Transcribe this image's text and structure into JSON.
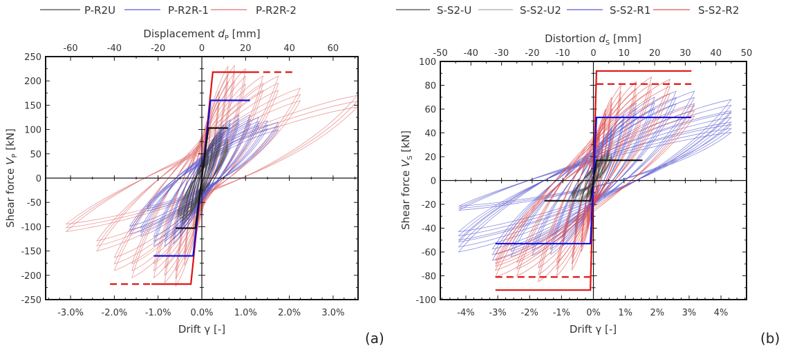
{
  "chart_data": [
    {
      "type": "line",
      "panel_label": "(a)",
      "top_axis": {
        "prefix": "Displacement ",
        "symbol": "d",
        "sub": "P",
        "suffix": " [mm]"
      },
      "bottom_axis_label": "Drift γ [-]",
      "y_axis": {
        "prefix": "Shear force ",
        "symbol": "V",
        "sub": "P",
        "suffix": " [kN]"
      },
      "xlim_mm": [
        -71.4,
        71.4
      ],
      "drift_lim_percent": [
        -3.57,
        3.57
      ],
      "ylim": [
        -250,
        250
      ],
      "top_ticks": [
        -60,
        -40,
        -20,
        0,
        20,
        40,
        60
      ],
      "top_tick_labels": [
        "-60",
        "-40",
        "-20",
        "0",
        "20",
        "40",
        "60"
      ],
      "bottom_ticks": [
        -3,
        -2,
        -1,
        0,
        1,
        2,
        3
      ],
      "bottom_tick_labels": [
        "-3.0%",
        "-2.0%",
        "-1.0%",
        "0.0%",
        "1.0%",
        "2.0%",
        "3.0%"
      ],
      "y_ticks": [
        -250,
        -200,
        -150,
        -100,
        -50,
        0,
        50,
        100,
        150,
        200,
        250
      ],
      "y_tick_labels": [
        "-250",
        "-200",
        "-150",
        "-100",
        "-50",
        "0",
        "50",
        "100",
        "150",
        "200",
        "250"
      ],
      "legend_position": "top",
      "series": [
        {
          "name": "P-R2R-2",
          "color": "#e07070",
          "peaks_pos": [
            [
              4,
              120
            ],
            [
              8,
              180
            ],
            [
              12,
              230
            ],
            [
              15,
              232
            ],
            [
              20,
              225
            ],
            [
              28,
              210
            ],
            [
              35,
              210
            ],
            [
              45,
              185
            ],
            [
              71,
              170
            ]
          ],
          "peaks_neg": [
            [
              -4,
              -120
            ],
            [
              -8,
              -180
            ],
            [
              -12,
              -222
            ],
            [
              -17,
              -215
            ],
            [
              -22,
              -205
            ],
            [
              -32,
              -205
            ],
            [
              -40,
              -190
            ],
            [
              -48,
              -150
            ],
            [
              -62,
              -110
            ]
          ]
        },
        {
          "name": "P-R2R-1",
          "color": "#5a5ad0",
          "peaks_pos": [
            [
              3,
              40
            ],
            [
              5,
              60
            ],
            [
              8,
              95
            ],
            [
              10,
              110
            ],
            [
              13,
              120
            ],
            [
              17,
              130
            ],
            [
              22,
              130
            ],
            [
              26,
              125
            ],
            [
              30,
              118
            ],
            [
              35,
              115
            ]
          ],
          "peaks_neg": [
            [
              -3,
              -40
            ],
            [
              -5,
              -60
            ],
            [
              -8,
              -100
            ],
            [
              -10,
              -120
            ],
            [
              -13,
              -135
            ],
            [
              -17,
              -140
            ],
            [
              -22,
              -140
            ],
            [
              -28,
              -120
            ],
            [
              -33,
              -115
            ],
            [
              -25,
              -68
            ]
          ]
        },
        {
          "name": "P-R2U",
          "color": "#444444",
          "peaks_pos": [
            [
              2,
              35
            ],
            [
              3,
              50
            ],
            [
              5,
              70
            ],
            [
              7,
              90
            ],
            [
              9,
              100
            ],
            [
              12,
              80
            ],
            [
              12,
              65
            ]
          ],
          "peaks_neg": [
            [
              -2,
              -35
            ],
            [
              -3,
              -50
            ],
            [
              -5,
              -70
            ],
            [
              -7,
              -85
            ],
            [
              -9,
              -95
            ],
            [
              -10,
              -90
            ],
            [
              -11,
              -80
            ]
          ]
        }
      ],
      "idealized": [
        {
          "color": "#e01010",
          "dashed": false,
          "points": [
            [
              -23,
              -218
            ],
            [
              -5,
              -218
            ],
            [
              0,
              0
            ],
            [
              5,
              218
            ],
            [
              23,
              218
            ]
          ]
        },
        {
          "color": "#e01010",
          "dashed": true,
          "points": [
            [
              -42,
              -218
            ],
            [
              -23,
              -218
            ]
          ]
        },
        {
          "color": "#e01010",
          "dashed": true,
          "points": [
            [
              23,
              218
            ],
            [
              42,
              218
            ]
          ]
        },
        {
          "color": "#1010e0",
          "dashed": false,
          "points": [
            [
              -22,
              -160
            ],
            [
              -4,
              -160
            ],
            [
              0,
              0
            ],
            [
              4,
              160
            ],
            [
              22,
              160
            ]
          ]
        },
        {
          "color": "#111111",
          "dashed": false,
          "points": [
            [
              -12,
              -103
            ],
            [
              -3,
              -103
            ],
            [
              0,
              0
            ],
            [
              3,
              103
            ],
            [
              12,
              103
            ]
          ]
        }
      ]
    },
    {
      "type": "line",
      "panel_label": "(b)",
      "top_axis": {
        "prefix": "Distortion ",
        "symbol": "d",
        "sub": "S",
        "suffix": " [mm]"
      },
      "bottom_axis_label": "Drift γ [-]",
      "y_axis": {
        "prefix": "Shear force ",
        "symbol": "V",
        "sub": "S",
        "suffix": " [kN]"
      },
      "xlim_mm": [
        -50,
        50
      ],
      "drift_lim_percent": [
        -4.8,
        4.8
      ],
      "ylim": [
        -100,
        100
      ],
      "top_ticks": [
        -50,
        -40,
        -30,
        -20,
        -10,
        0,
        10,
        20,
        30,
        40,
        50
      ],
      "top_tick_labels": [
        "-50",
        "-40",
        "-30",
        "-20",
        "-10",
        "0",
        "10",
        "20",
        "30",
        "40",
        "50"
      ],
      "bottom_ticks": [
        -4,
        -3,
        -2,
        -1,
        0,
        1,
        2,
        3,
        4
      ],
      "bottom_tick_labels": [
        "-4%",
        "-3%",
        "-2%",
        "-1%",
        "0%",
        "1%",
        "2%",
        "3%",
        "4%"
      ],
      "y_ticks": [
        -100,
        -80,
        -60,
        -40,
        -20,
        0,
        20,
        40,
        60,
        80,
        100
      ],
      "y_tick_labels": [
        "-100",
        "-80",
        "-60",
        "-40",
        "-20",
        "0",
        "20",
        "40",
        "60",
        "80",
        "100"
      ],
      "legend_position": "top",
      "series": [
        {
          "name": "S-S2-R1",
          "color": "#5a5ad0",
          "peaks_pos": [
            [
              3,
              30
            ],
            [
              6,
              45
            ],
            [
              10,
              55
            ],
            [
              14,
              65
            ],
            [
              20,
              70
            ],
            [
              27,
              75
            ],
            [
              33,
              75
            ],
            [
              45,
              68
            ],
            [
              45,
              57
            ],
            [
              45,
              47
            ]
          ],
          "peaks_neg": [
            [
              -3,
              -30
            ],
            [
              -6,
              -45
            ],
            [
              -10,
              -55
            ],
            [
              -14,
              -62
            ],
            [
              -20,
              -63
            ],
            [
              -27,
              -64
            ],
            [
              -33,
              -67
            ],
            [
              -44,
              -60
            ],
            [
              -44,
              -50
            ],
            [
              -44,
              -25
            ]
          ]
        },
        {
          "name": "S-S2-R2",
          "color": "#e05050",
          "peaks_pos": [
            [
              2,
              40
            ],
            [
              4,
              60
            ],
            [
              6,
              70
            ],
            [
              9,
              80
            ],
            [
              14,
              83
            ],
            [
              19,
              87
            ],
            [
              25,
              85
            ],
            [
              33,
              63
            ]
          ],
          "peaks_neg": [
            [
              -2,
              -40
            ],
            [
              -4,
              -60
            ],
            [
              -7,
              -75
            ],
            [
              -12,
              -80
            ],
            [
              -18,
              -85
            ],
            [
              -25,
              -80
            ],
            [
              -32,
              -81
            ],
            [
              -32,
              -72
            ]
          ]
        },
        {
          "name": "S-S2-U2",
          "color": "#aaaaaa",
          "peaks_pos": [
            [
              2,
              12
            ],
            [
              4,
              18
            ],
            [
              6,
              20
            ]
          ],
          "peaks_neg": [
            [
              -2,
              -15
            ],
            [
              -5,
              -20
            ],
            [
              -8,
              -22
            ]
          ]
        },
        {
          "name": "S-S2-U",
          "color": "#444444",
          "peaks_pos": [
            [
              1,
              10
            ],
            [
              2,
              15
            ],
            [
              3,
              20
            ],
            [
              5,
              25
            ],
            [
              6,
              22
            ]
          ],
          "peaks_neg": [
            [
              -1,
              -10
            ],
            [
              -2,
              -15
            ],
            [
              -4,
              -18
            ],
            [
              -7,
              -15
            ],
            [
              -7,
              -12
            ]
          ]
        }
      ],
      "idealized": [
        {
          "color": "#e01010",
          "dashed": false,
          "points": [
            [
              -32,
              -92
            ],
            [
              -1,
              -92
            ],
            [
              0,
              0
            ],
            [
              1,
              92
            ],
            [
              32,
              92
            ]
          ]
        },
        {
          "color": "#e01010",
          "dashed": true,
          "points": [
            [
              -32,
              -81
            ],
            [
              -1,
              -81
            ]
          ]
        },
        {
          "color": "#e01010",
          "dashed": true,
          "points": [
            [
              1,
              81
            ],
            [
              32,
              81
            ]
          ]
        },
        {
          "color": "#1010e0",
          "dashed": false,
          "points": [
            [
              -32,
              -53
            ],
            [
              -1,
              -53
            ],
            [
              0,
              0
            ],
            [
              1,
              53
            ],
            [
              32,
              53
            ]
          ]
        },
        {
          "color": "#111111",
          "dashed": false,
          "points": [
            [
              -16,
              -17
            ],
            [
              -1,
              -17
            ],
            [
              0,
              0
            ],
            [
              1,
              17
            ],
            [
              16,
              17
            ]
          ]
        }
      ]
    }
  ],
  "legends": [
    {
      "items": [
        {
          "label": "P-R2U",
          "color": "#444444"
        },
        {
          "label": "P-R2R-1",
          "color": "#5a5ad0"
        },
        {
          "label": "P-R2R-2",
          "color": "#e07070"
        }
      ]
    },
    {
      "items": [
        {
          "label": "S-S2-U",
          "color": "#444444"
        },
        {
          "label": "S-S2-U2",
          "color": "#aaaaaa"
        },
        {
          "label": "S-S2-R1",
          "color": "#5a5ad0"
        },
        {
          "label": "S-S2-R2",
          "color": "#e05050"
        }
      ]
    }
  ]
}
